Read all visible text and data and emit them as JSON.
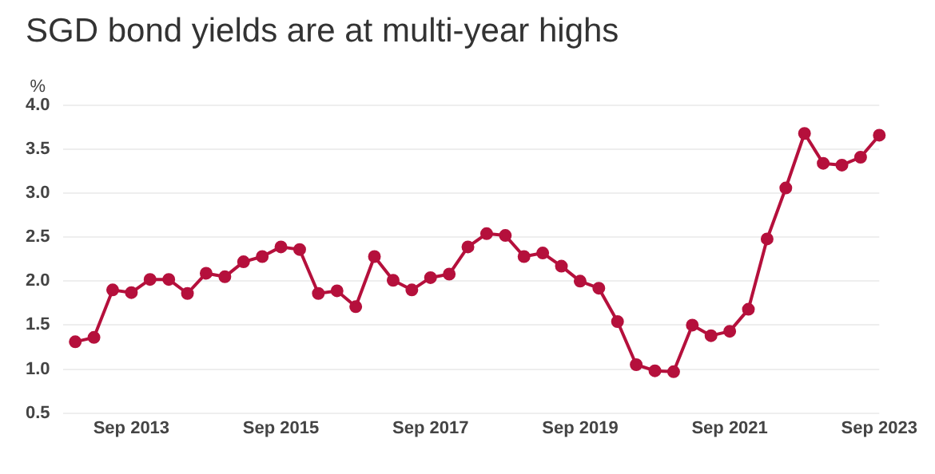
{
  "chart_data": {
    "type": "line",
    "title": "SGD bond yields are at multi-year highs",
    "ylabel": "%",
    "x": [
      "2012-12",
      "2013-03",
      "2013-06",
      "2013-09",
      "2013-12",
      "2014-03",
      "2014-06",
      "2014-09",
      "2014-12",
      "2015-03",
      "2015-06",
      "2015-09",
      "2015-12",
      "2016-03",
      "2016-06",
      "2016-09",
      "2016-12",
      "2017-03",
      "2017-06",
      "2017-09",
      "2017-12",
      "2018-03",
      "2018-06",
      "2018-09",
      "2018-12",
      "2019-03",
      "2019-06",
      "2019-09",
      "2019-12",
      "2020-03",
      "2020-06",
      "2020-09",
      "2020-12",
      "2021-03",
      "2021-06",
      "2021-09",
      "2021-12",
      "2022-03",
      "2022-06",
      "2022-09",
      "2022-12",
      "2023-03",
      "2023-06",
      "2023-09"
    ],
    "series": [
      {
        "color": "#b5103c",
        "values": [
          1.31,
          1.36,
          1.9,
          1.87,
          2.02,
          2.02,
          1.86,
          2.09,
          2.05,
          2.22,
          2.28,
          2.39,
          2.36,
          1.86,
          1.89,
          1.71,
          2.28,
          2.01,
          1.9,
          2.04,
          2.08,
          2.39,
          2.54,
          2.52,
          2.28,
          2.32,
          2.17,
          2.0,
          1.92,
          1.54,
          1.05,
          0.98,
          0.97,
          1.5,
          1.38,
          1.43,
          1.68,
          2.48,
          3.06,
          3.68,
          3.34,
          3.32,
          3.41,
          3.66
        ]
      }
    ],
    "xlim": [
      "2012-10",
      "2023-09"
    ],
    "xticks": [
      {
        "value": "2013-09",
        "label": "Sep 2013"
      },
      {
        "value": "2015-09",
        "label": "Sep 2015"
      },
      {
        "value": "2017-09",
        "label": "Sep 2017"
      },
      {
        "value": "2019-09",
        "label": "Sep 2019"
      },
      {
        "value": "2021-09",
        "label": "Sep 2021"
      },
      {
        "value": "2023-09",
        "label": "Sep 2023"
      }
    ],
    "ylim": [
      0.5,
      4.0
    ],
    "yticks": [
      {
        "value": 0.5,
        "label": "0.5"
      },
      {
        "value": 1,
        "label": "1.0"
      },
      {
        "value": 1.5,
        "label": "1.5"
      },
      {
        "value": 2,
        "label": "2.0"
      },
      {
        "value": 2.5,
        "label": "2.5"
      },
      {
        "value": 3,
        "label": "3.0"
      },
      {
        "value": 3.5,
        "label": "3.5"
      },
      {
        "value": 4,
        "label": "4.0"
      }
    ],
    "grid": "y",
    "marker": "circle",
    "line_style": "solid",
    "legend": false
  }
}
